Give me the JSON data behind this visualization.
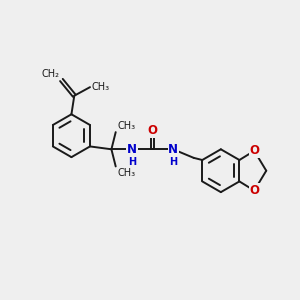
{
  "background_color": "#efefef",
  "bond_color": "#1a1a1a",
  "atom_colors": {
    "N": "#0000cc",
    "O": "#cc0000",
    "C": "#1a1a1a"
  },
  "lw": 1.4,
  "figsize": [
    3.0,
    3.0
  ],
  "dpi": 100,
  "xlim": [
    -1.0,
    9.5
  ],
  "ylim": [
    -1.5,
    6.5
  ]
}
